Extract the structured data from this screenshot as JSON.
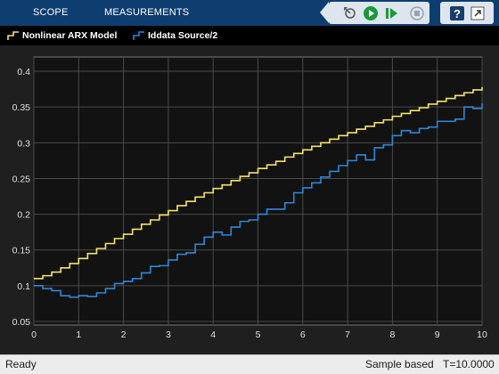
{
  "toolstrip": {
    "tabs": [
      {
        "label": "SCOPE"
      },
      {
        "label": "MEASUREMENTS"
      }
    ],
    "icons": [
      "step-back-icon",
      "run-icon",
      "step-forward-icon",
      "stop-icon",
      "help-icon",
      "undock-icon"
    ],
    "help_label": "?"
  },
  "colors": {
    "toolstrip": "#0e3d70",
    "plot_background": "#121212",
    "axes_frame": "#000000",
    "grid": "#4a4a4a",
    "series_1": "#f3e36b",
    "series_2": "#2f86d6",
    "run_green": "#1a9a3a"
  },
  "chart_data": {
    "type": "line",
    "step": true,
    "title": "",
    "xlabel": "",
    "ylabel": "",
    "xlim": [
      0,
      10
    ],
    "ylim": [
      0.045,
      0.42
    ],
    "grid": true,
    "legend": "top-left",
    "xticks": [
      0,
      1,
      2,
      3,
      4,
      5,
      6,
      7,
      8,
      9,
      10
    ],
    "xtick_labels": [
      "0",
      "1",
      "2",
      "3",
      "4",
      "5",
      "6",
      "7",
      "8",
      "9",
      "10"
    ],
    "yticks": [
      0.05,
      0.1,
      0.15,
      0.2,
      0.25,
      0.3,
      0.35,
      0.4
    ],
    "ytick_labels": [
      "0.05",
      "0.1",
      "0.15",
      "0.2",
      "0.25",
      "0.3",
      "0.35",
      "0.4"
    ],
    "x": [
      0,
      0.2,
      0.4,
      0.6,
      0.8,
      1.0,
      1.2,
      1.4,
      1.6,
      1.8,
      2.0,
      2.2,
      2.4,
      2.6,
      2.8,
      3.0,
      3.2,
      3.4,
      3.6,
      3.8,
      4.0,
      4.2,
      4.4,
      4.6,
      4.8,
      5.0,
      5.2,
      5.4,
      5.6,
      5.8,
      6.0,
      6.2,
      6.4,
      6.6,
      6.8,
      7.0,
      7.2,
      7.4,
      7.6,
      7.8,
      8.0,
      8.2,
      8.4,
      8.6,
      8.8,
      9.0,
      9.2,
      9.4,
      9.6,
      9.8,
      10.0
    ],
    "series": [
      {
        "name": "Nonlinear ARX Model",
        "values": [
          0.11,
          0.114,
          0.119,
          0.125,
          0.131,
          0.138,
          0.145,
          0.152,
          0.159,
          0.166,
          0.172,
          0.179,
          0.186,
          0.192,
          0.199,
          0.205,
          0.212,
          0.218,
          0.224,
          0.23,
          0.236,
          0.241,
          0.247,
          0.253,
          0.258,
          0.264,
          0.269,
          0.274,
          0.28,
          0.285,
          0.29,
          0.295,
          0.3,
          0.305,
          0.31,
          0.314,
          0.319,
          0.323,
          0.328,
          0.332,
          0.337,
          0.341,
          0.345,
          0.349,
          0.354,
          0.358,
          0.362,
          0.366,
          0.37,
          0.374,
          0.378
        ]
      },
      {
        "name": "Iddata Source/2",
        "values": [
          0.1,
          0.096,
          0.093,
          0.086,
          0.084,
          0.086,
          0.085,
          0.09,
          0.096,
          0.103,
          0.106,
          0.11,
          0.118,
          0.127,
          0.128,
          0.136,
          0.144,
          0.146,
          0.158,
          0.168,
          0.175,
          0.171,
          0.182,
          0.19,
          0.192,
          0.2,
          0.207,
          0.207,
          0.216,
          0.23,
          0.237,
          0.244,
          0.252,
          0.26,
          0.268,
          0.275,
          0.283,
          0.276,
          0.293,
          0.297,
          0.31,
          0.317,
          0.314,
          0.32,
          0.322,
          0.33,
          0.33,
          0.333,
          0.35,
          0.348,
          0.355
        ]
      }
    ]
  },
  "status": {
    "ready": "Ready",
    "mode": "Sample based",
    "time": "T=10.0000"
  }
}
